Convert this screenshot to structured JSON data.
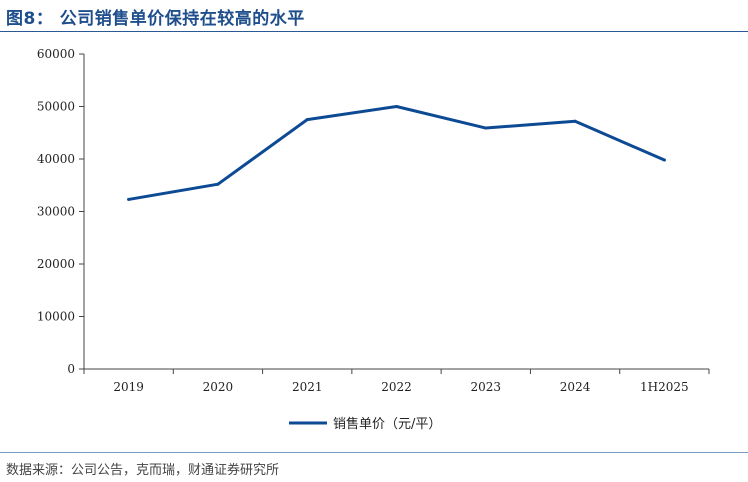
{
  "figure": {
    "title": "图8： 公司销售单价保持在较高的水平",
    "source": "数据来源：公司公告，克而瑞，财通证券研究所"
  },
  "colors": {
    "series": "#0d4a94",
    "title": "#1e4e8c",
    "axis": "#444444"
  },
  "chart_data": {
    "type": "line",
    "categories": [
      "2019",
      "2020",
      "2021",
      "2022",
      "2023",
      "2024",
      "1H2025"
    ],
    "series": [
      {
        "name": "销售单价（元/平）",
        "values": [
          32300,
          35200,
          47500,
          50000,
          45900,
          47200,
          39800
        ]
      }
    ],
    "ylim": [
      0,
      60000
    ],
    "yticks": [
      "0",
      "10000",
      "20000",
      "30000",
      "40000",
      "50000",
      "60000"
    ],
    "grid": false,
    "legend": "bottom-center"
  }
}
